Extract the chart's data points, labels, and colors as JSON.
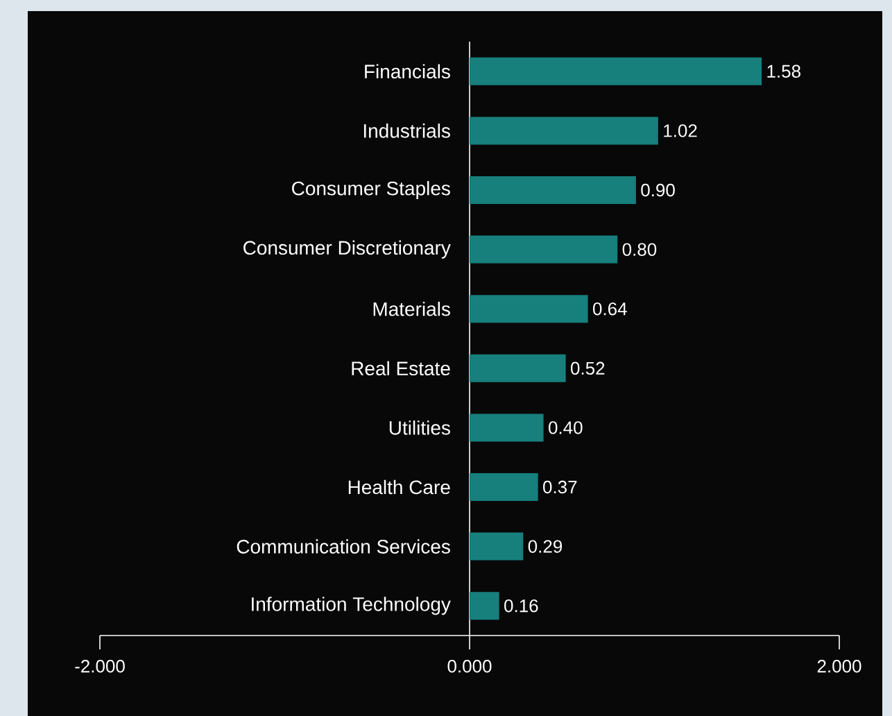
{
  "chart_data": {
    "type": "bar",
    "orientation": "horizontal",
    "categories": [
      "Financials",
      "Industrials",
      "Consumer Staples",
      "Consumer Discretionary",
      "Materials",
      "Real Estate",
      "Utilities",
      "Health Care",
      "Communication Services",
      "Information Technology"
    ],
    "values": [
      1.58,
      1.02,
      0.9,
      0.8,
      0.64,
      0.52,
      0.4,
      0.37,
      0.29,
      0.16
    ],
    "value_labels": [
      "1.58",
      "1.02",
      "0.90",
      "0.80",
      "0.64",
      "0.52",
      "0.40",
      "0.37",
      "0.29",
      "0.16"
    ],
    "color": "#177f7c",
    "xlim": [
      -2,
      2
    ],
    "xticks": [
      {
        "value": -2,
        "label": "-2.000"
      },
      {
        "value": 0,
        "label": "0.000"
      },
      {
        "value": 2,
        "label": "2.000"
      }
    ]
  }
}
